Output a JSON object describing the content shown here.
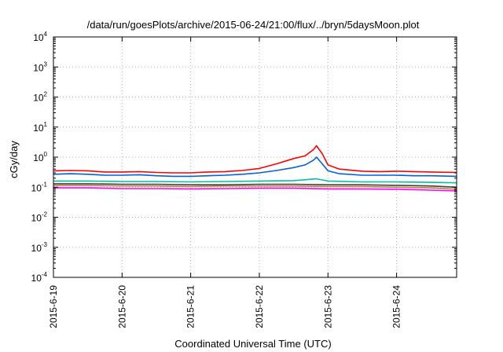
{
  "chart_data": {
    "type": "line",
    "title": "/data/run/goesPlots/archive/2015-06-24/21:00/flux/../bryn/5daysMoon.plot",
    "xlabel": "Coordinated Universal Time (UTC)",
    "ylabel": "cGy/day",
    "y_scale": "log",
    "ylim": [
      0.0001,
      10000
    ],
    "y_ticks": [
      {
        "base": "10",
        "exp": "-4"
      },
      {
        "base": "10",
        "exp": "-3"
      },
      {
        "base": "10",
        "exp": "-2"
      },
      {
        "base": "10",
        "exp": "-1"
      },
      {
        "base": "10",
        "exp": "0"
      },
      {
        "base": "10",
        "exp": "1"
      },
      {
        "base": "10",
        "exp": "2"
      },
      {
        "base": "10",
        "exp": "3"
      },
      {
        "base": "10",
        "exp": "4"
      }
    ],
    "xlim": [
      "2015-06-19T00:00",
      "2015-06-24T21:00"
    ],
    "x_ticks": [
      "2015-6-19",
      "2015-6-20",
      "2015-6-21",
      "2015-6-22",
      "2015-6-23",
      "2015-6-24"
    ],
    "grid": true,
    "legend": "none",
    "series": [
      {
        "color": "#ff0000",
        "points": [
          [
            "2015-06-19T00:00",
            0.35
          ],
          [
            "2015-06-19T06:00",
            0.36
          ],
          [
            "2015-06-19T12:00",
            0.35
          ],
          [
            "2015-06-19T18:00",
            0.32
          ],
          [
            "2015-06-20T00:00",
            0.32
          ],
          [
            "2015-06-20T06:00",
            0.33
          ],
          [
            "2015-06-20T12:00",
            0.31
          ],
          [
            "2015-06-20T18:00",
            0.3
          ],
          [
            "2015-06-21T00:00",
            0.3
          ],
          [
            "2015-06-21T06:00",
            0.32
          ],
          [
            "2015-06-21T12:00",
            0.33
          ],
          [
            "2015-06-21T18:00",
            0.36
          ],
          [
            "2015-06-22T00:00",
            0.42
          ],
          [
            "2015-06-22T06:00",
            0.6
          ],
          [
            "2015-06-22T12:00",
            0.9
          ],
          [
            "2015-06-22T16:00",
            1.1
          ],
          [
            "2015-06-22T19:00",
            1.8
          ],
          [
            "2015-06-22T20:00",
            2.4
          ],
          [
            "2015-06-22T22:00",
            1.3
          ],
          [
            "2015-06-23T00:00",
            0.55
          ],
          [
            "2015-06-23T04:00",
            0.4
          ],
          [
            "2015-06-23T12:00",
            0.34
          ],
          [
            "2015-06-23T18:00",
            0.33
          ],
          [
            "2015-06-24T00:00",
            0.34
          ],
          [
            "2015-06-24T06:00",
            0.33
          ],
          [
            "2015-06-24T12:00",
            0.32
          ],
          [
            "2015-06-24T21:00",
            0.31
          ]
        ]
      },
      {
        "color": "#0060e0",
        "points": [
          [
            "2015-06-19T00:00",
            0.27
          ],
          [
            "2015-06-19T06:00",
            0.28
          ],
          [
            "2015-06-19T12:00",
            0.27
          ],
          [
            "2015-06-19T18:00",
            0.25
          ],
          [
            "2015-06-20T00:00",
            0.25
          ],
          [
            "2015-06-20T06:00",
            0.26
          ],
          [
            "2015-06-20T12:00",
            0.24
          ],
          [
            "2015-06-20T18:00",
            0.23
          ],
          [
            "2015-06-21T00:00",
            0.23
          ],
          [
            "2015-06-21T06:00",
            0.24
          ],
          [
            "2015-06-21T12:00",
            0.25
          ],
          [
            "2015-06-21T18:00",
            0.27
          ],
          [
            "2015-06-22T00:00",
            0.3
          ],
          [
            "2015-06-22T06:00",
            0.36
          ],
          [
            "2015-06-22T12:00",
            0.45
          ],
          [
            "2015-06-22T16:00",
            0.55
          ],
          [
            "2015-06-22T19:00",
            0.8
          ],
          [
            "2015-06-22T20:00",
            1.0
          ],
          [
            "2015-06-22T22:00",
            0.6
          ],
          [
            "2015-06-23T00:00",
            0.35
          ],
          [
            "2015-06-23T04:00",
            0.28
          ],
          [
            "2015-06-23T12:00",
            0.25
          ],
          [
            "2015-06-23T18:00",
            0.25
          ],
          [
            "2015-06-24T00:00",
            0.25
          ],
          [
            "2015-06-24T06:00",
            0.24
          ],
          [
            "2015-06-24T12:00",
            0.24
          ],
          [
            "2015-06-24T21:00",
            0.23
          ]
        ]
      },
      {
        "color": "#00c0a0",
        "points": [
          [
            "2015-06-19T00:00",
            0.16
          ],
          [
            "2015-06-19T12:00",
            0.16
          ],
          [
            "2015-06-20T00:00",
            0.155
          ],
          [
            "2015-06-20T12:00",
            0.155
          ],
          [
            "2015-06-21T00:00",
            0.15
          ],
          [
            "2015-06-21T12:00",
            0.155
          ],
          [
            "2015-06-22T00:00",
            0.16
          ],
          [
            "2015-06-22T12:00",
            0.165
          ],
          [
            "2015-06-22T20:00",
            0.19
          ],
          [
            "2015-06-23T00:00",
            0.16
          ],
          [
            "2015-06-23T12:00",
            0.15
          ],
          [
            "2015-06-24T00:00",
            0.15
          ],
          [
            "2015-06-24T12:00",
            0.145
          ],
          [
            "2015-06-24T21:00",
            0.14
          ]
        ]
      },
      {
        "color": "#404040",
        "points": [
          [
            "2015-06-19T00:00",
            0.13
          ],
          [
            "2015-06-19T12:00",
            0.13
          ],
          [
            "2015-06-20T00:00",
            0.125
          ],
          [
            "2015-06-20T12:00",
            0.125
          ],
          [
            "2015-06-21T00:00",
            0.12
          ],
          [
            "2015-06-21T12:00",
            0.12
          ],
          [
            "2015-06-22T00:00",
            0.125
          ],
          [
            "2015-06-22T12:00",
            0.125
          ],
          [
            "2015-06-23T00:00",
            0.12
          ],
          [
            "2015-06-23T12:00",
            0.12
          ],
          [
            "2015-06-24T00:00",
            0.115
          ],
          [
            "2015-06-24T12:00",
            0.11
          ],
          [
            "2015-06-24T21:00",
            0.1
          ]
        ]
      },
      {
        "color": "#c08040",
        "points": [
          [
            "2015-06-19T00:00",
            0.115
          ],
          [
            "2015-06-19T12:00",
            0.115
          ],
          [
            "2015-06-20T00:00",
            0.11
          ],
          [
            "2015-06-20T12:00",
            0.11
          ],
          [
            "2015-06-21T00:00",
            0.105
          ],
          [
            "2015-06-21T12:00",
            0.11
          ],
          [
            "2015-06-22T00:00",
            0.11
          ],
          [
            "2015-06-22T12:00",
            0.11
          ],
          [
            "2015-06-23T00:00",
            0.105
          ],
          [
            "2015-06-23T12:00",
            0.105
          ],
          [
            "2015-06-24T00:00",
            0.1
          ],
          [
            "2015-06-24T12:00",
            0.095
          ],
          [
            "2015-06-24T21:00",
            0.085
          ]
        ]
      },
      {
        "color": "#ff00ff",
        "points": [
          [
            "2015-06-19T00:00",
            0.095
          ],
          [
            "2015-06-19T12:00",
            0.095
          ],
          [
            "2015-06-20T00:00",
            0.09
          ],
          [
            "2015-06-20T12:00",
            0.09
          ],
          [
            "2015-06-21T00:00",
            0.088
          ],
          [
            "2015-06-21T12:00",
            0.09
          ],
          [
            "2015-06-22T00:00",
            0.092
          ],
          [
            "2015-06-22T12:00",
            0.092
          ],
          [
            "2015-06-23T00:00",
            0.088
          ],
          [
            "2015-06-23T12:00",
            0.088
          ],
          [
            "2015-06-24T00:00",
            0.085
          ],
          [
            "2015-06-24T12:00",
            0.08
          ],
          [
            "2015-06-24T21:00",
            0.075
          ]
        ]
      }
    ]
  }
}
